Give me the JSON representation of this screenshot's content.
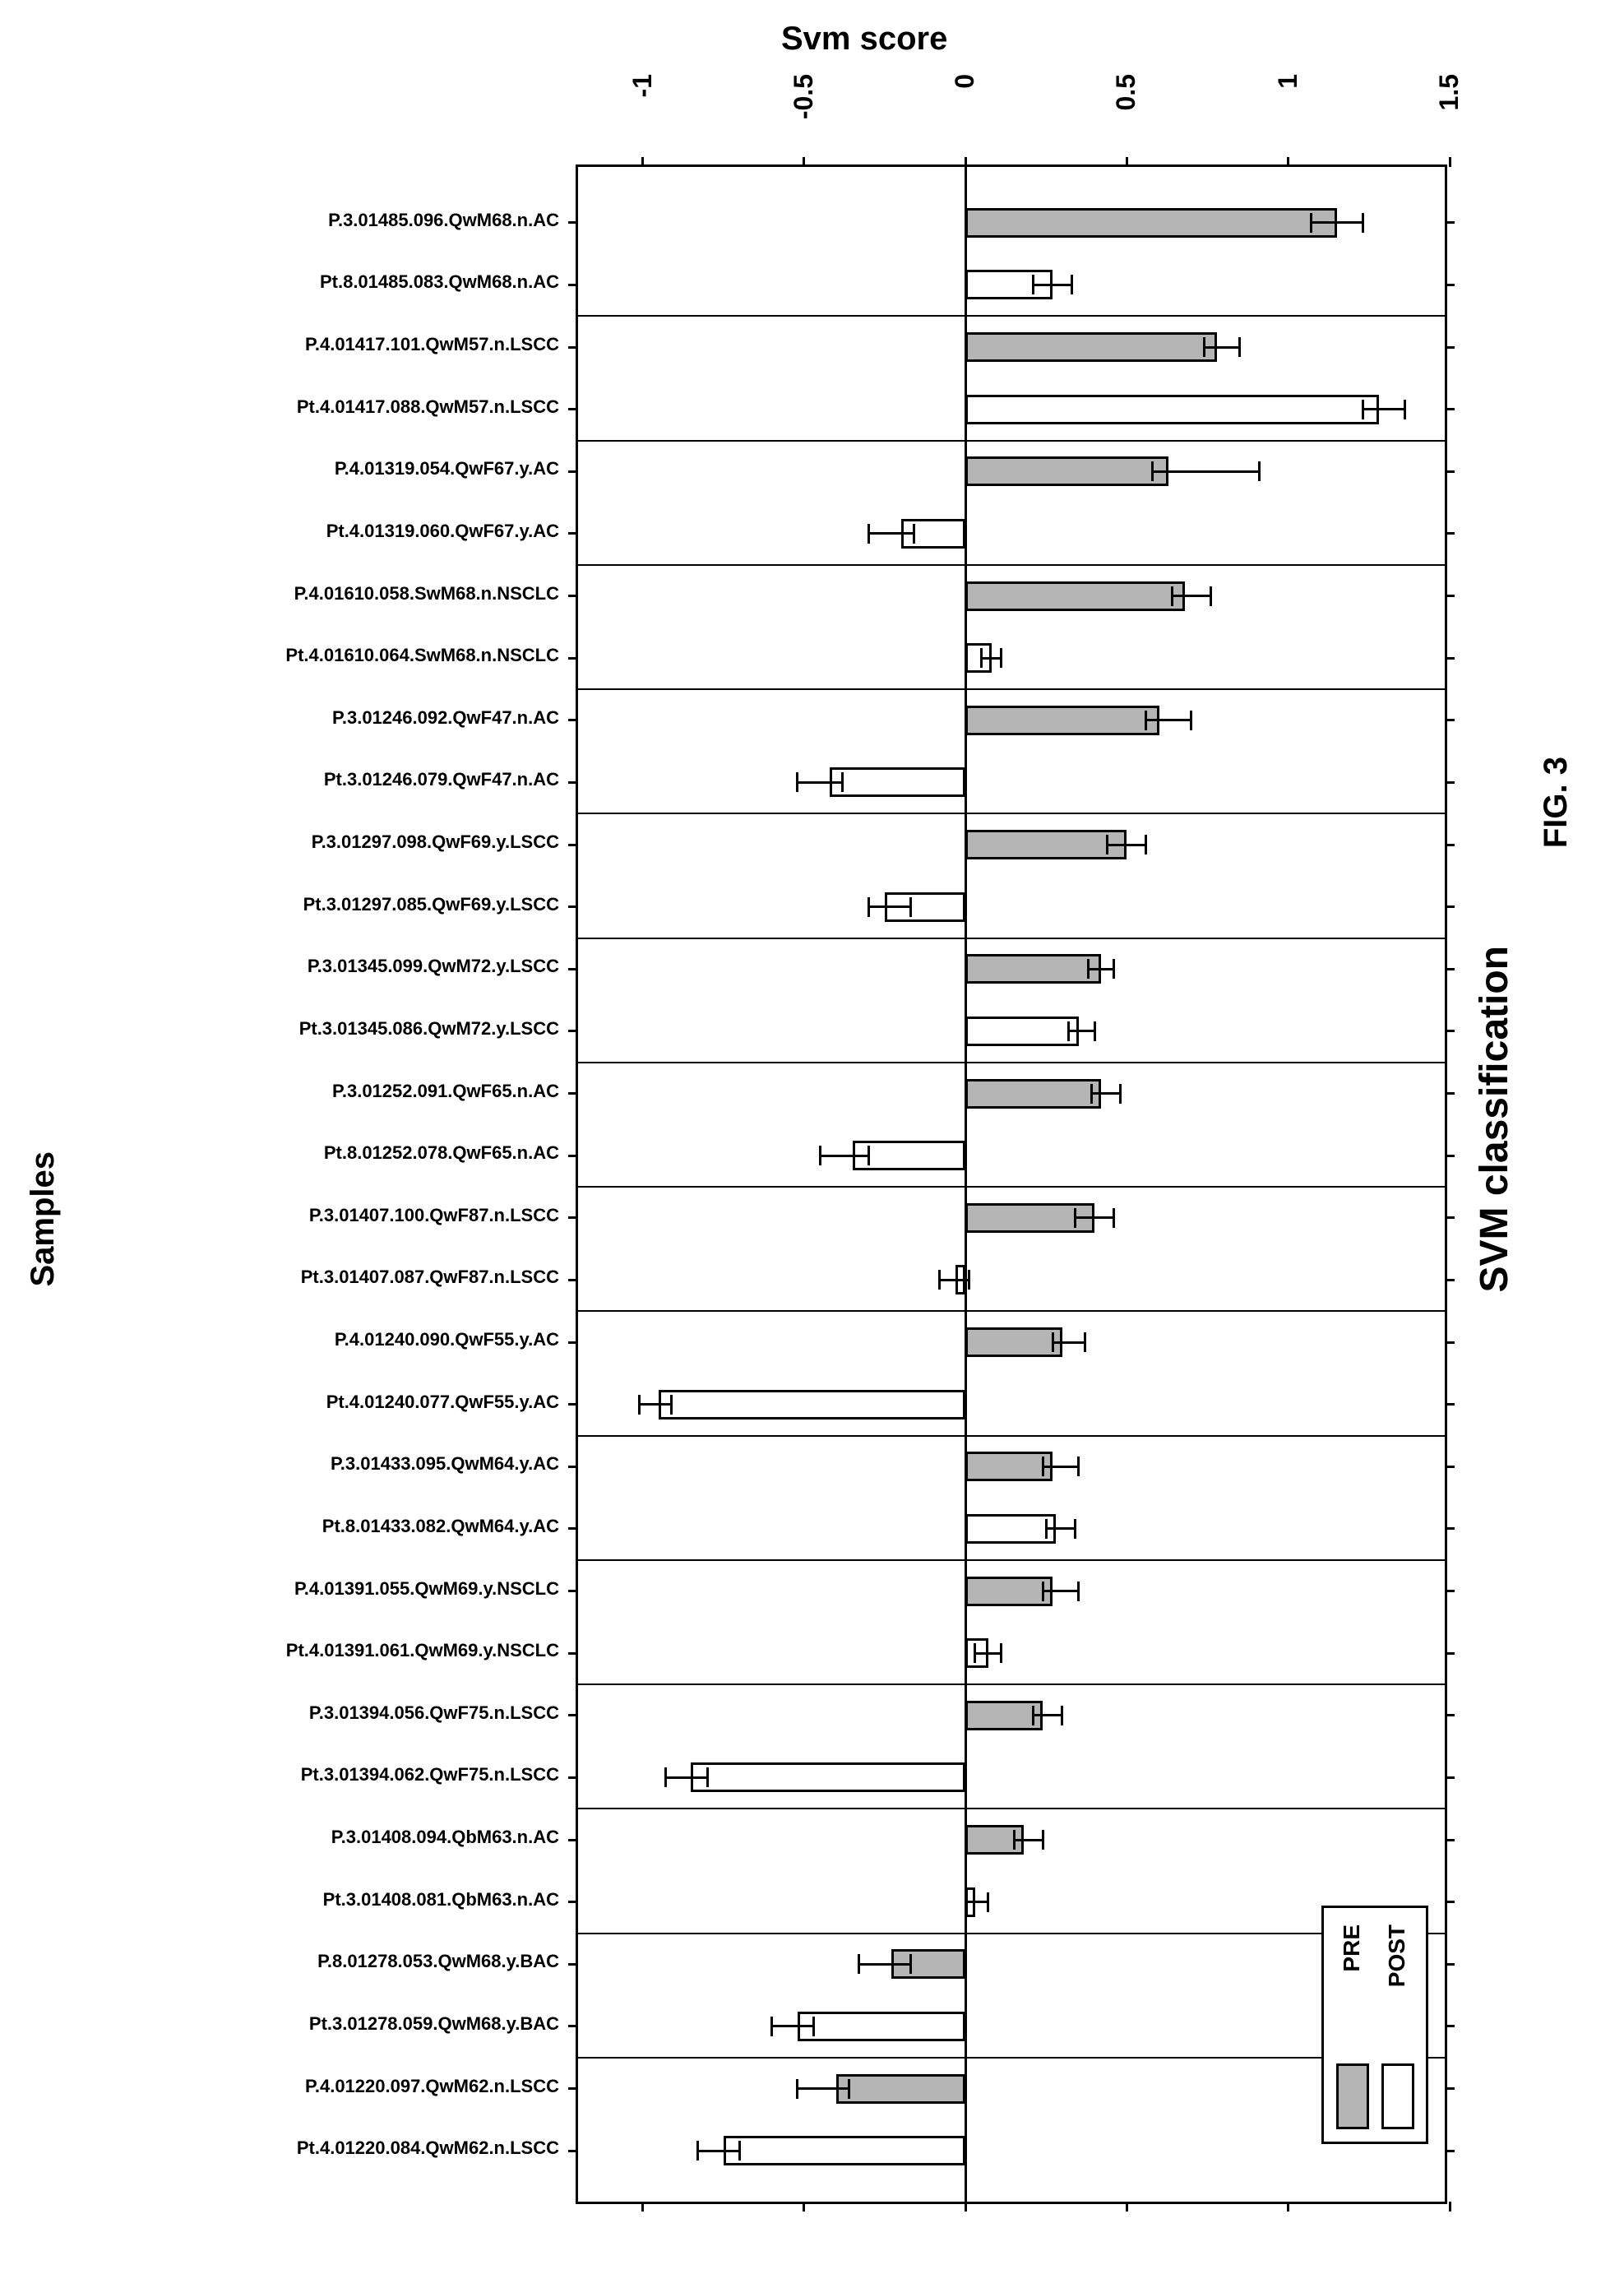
{
  "figure_label": "FIG. 3",
  "chart": {
    "type": "bar",
    "orientation": "horizontal",
    "title": "SVM classification",
    "x_axis_title": "Svm score",
    "y_axis_title": "Samples",
    "xlim": [
      -1.2,
      1.5
    ],
    "xticks": [
      -1,
      -0.5,
      0,
      0.5,
      1,
      1.5
    ],
    "xtick_labels": [
      "-1",
      "-0.5",
      "0",
      "0.5",
      "1",
      "1.5"
    ],
    "bar_border_color": "#000000",
    "axis_color": "#000000",
    "background_color": "#ffffff",
    "font": {
      "label_pt": 22,
      "axis_title_pt": 40,
      "tick_pt": 32,
      "title_pt": 48
    },
    "series_colors": {
      "PRE": "#b5b5b5",
      "POST": "#ffffff"
    },
    "legend": {
      "items": [
        "PRE",
        "POST"
      ]
    },
    "groups": [
      {
        "rows": [
          {
            "label": "P.3.01485.096.QwM68.n.AC",
            "series": "PRE",
            "value": 1.15,
            "err_lo": 0.08,
            "err_hi": 0.08
          },
          {
            "label": "Pt.8.01485.083.QwM68.n.AC",
            "series": "POST",
            "value": 0.27,
            "err_lo": 0.06,
            "err_hi": 0.06
          }
        ]
      },
      {
        "rows": [
          {
            "label": "P.4.01417.101.QwM57.n.LSCC",
            "series": "PRE",
            "value": 0.78,
            "err_lo": 0.04,
            "err_hi": 0.07
          },
          {
            "label": "Pt.4.01417.088.QwM57.n.LSCC",
            "series": "POST",
            "value": 1.28,
            "err_lo": 0.05,
            "err_hi": 0.08
          }
        ]
      },
      {
        "rows": [
          {
            "label": "P.4.01319.054.QwF67.y.AC",
            "series": "PRE",
            "value": 0.63,
            "err_lo": 0.05,
            "err_hi": 0.28
          },
          {
            "label": "Pt.4.01319.060.QwF67.y.AC",
            "series": "POST",
            "value": -0.2,
            "err_lo": 0.1,
            "err_hi": 0.04
          }
        ]
      },
      {
        "rows": [
          {
            "label": "P.4.01610.058.SwM68.n.NSCLC",
            "series": "PRE",
            "value": 0.68,
            "err_lo": 0.04,
            "err_hi": 0.08
          },
          {
            "label": "Pt.4.01610.064.SwM68.n.NSCLC",
            "series": "POST",
            "value": 0.08,
            "err_lo": 0.03,
            "err_hi": 0.03
          }
        ]
      },
      {
        "rows": [
          {
            "label": "P.3.01246.092.QwF47.n.AC",
            "series": "PRE",
            "value": 0.6,
            "err_lo": 0.04,
            "err_hi": 0.1
          },
          {
            "label": "Pt.3.01246.079.QwF47.n.AC",
            "series": "POST",
            "value": -0.42,
            "err_lo": 0.1,
            "err_hi": 0.04
          }
        ]
      },
      {
        "rows": [
          {
            "label": "P.3.01297.098.QwF69.y.LSCC",
            "series": "PRE",
            "value": 0.5,
            "err_lo": 0.06,
            "err_hi": 0.06
          },
          {
            "label": "Pt.3.01297.085.QwF69.y.LSCC",
            "series": "POST",
            "value": -0.25,
            "err_lo": 0.05,
            "err_hi": 0.08
          }
        ]
      },
      {
        "rows": [
          {
            "label": "P.3.01345.099.QwM72.y.LSCC",
            "series": "PRE",
            "value": 0.42,
            "err_lo": 0.04,
            "err_hi": 0.04
          },
          {
            "label": "Pt.3.01345.086.QwM72.y.LSCC",
            "series": "POST",
            "value": 0.35,
            "err_lo": 0.03,
            "err_hi": 0.05
          }
        ]
      },
      {
        "rows": [
          {
            "label": "P.3.01252.091.QwF65.n.AC",
            "series": "PRE",
            "value": 0.42,
            "err_lo": 0.03,
            "err_hi": 0.06
          },
          {
            "label": "Pt.8.01252.078.QwF65.n.AC",
            "series": "POST",
            "value": -0.35,
            "err_lo": 0.1,
            "err_hi": 0.05
          }
        ]
      },
      {
        "rows": [
          {
            "label": "P.3.01407.100.QwF87.n.LSCC",
            "series": "PRE",
            "value": 0.4,
            "err_lo": 0.06,
            "err_hi": 0.06
          },
          {
            "label": "Pt.3.01407.087.QwF87.n.LSCC",
            "series": "POST",
            "value": -0.03,
            "err_lo": 0.05,
            "err_hi": 0.04
          }
        ]
      },
      {
        "rows": [
          {
            "label": "P.4.01240.090.QwF55.y.AC",
            "series": "PRE",
            "value": 0.3,
            "err_lo": 0.03,
            "err_hi": 0.07
          },
          {
            "label": "Pt.4.01240.077.QwF55.y.AC",
            "series": "POST",
            "value": -0.95,
            "err_lo": 0.06,
            "err_hi": 0.04
          }
        ]
      },
      {
        "rows": [
          {
            "label": "P.3.01433.095.QwM64.y.AC",
            "series": "PRE",
            "value": 0.27,
            "err_lo": 0.03,
            "err_hi": 0.08
          },
          {
            "label": "Pt.8.01433.082.QwM64.y.AC",
            "series": "POST",
            "value": 0.28,
            "err_lo": 0.03,
            "err_hi": 0.06
          }
        ]
      },
      {
        "rows": [
          {
            "label": "P.4.01391.055.QwM69.y.NSCLC",
            "series": "PRE",
            "value": 0.27,
            "err_lo": 0.03,
            "err_hi": 0.08
          },
          {
            "label": "Pt.4.01391.061.QwM69.y.NSCLC",
            "series": "POST",
            "value": 0.07,
            "err_lo": 0.04,
            "err_hi": 0.04
          }
        ]
      },
      {
        "rows": [
          {
            "label": "P.3.01394.056.QwF75.n.LSCC",
            "series": "PRE",
            "value": 0.24,
            "err_lo": 0.03,
            "err_hi": 0.06
          },
          {
            "label": "Pt.3.01394.062.QwF75.n.LSCC",
            "series": "POST",
            "value": -0.85,
            "err_lo": 0.08,
            "err_hi": 0.05
          }
        ]
      },
      {
        "rows": [
          {
            "label": "P.3.01408.094.QbM63.n.AC",
            "series": "PRE",
            "value": 0.18,
            "err_lo": 0.03,
            "err_hi": 0.06
          },
          {
            "label": "Pt.3.01408.081.QbM63.n.AC",
            "series": "POST",
            "value": 0.03,
            "err_lo": 0.03,
            "err_hi": 0.04
          }
        ]
      },
      {
        "rows": [
          {
            "label": "P.8.01278.053.QwM68.y.BAC",
            "series": "PRE",
            "value": -0.23,
            "err_lo": 0.1,
            "err_hi": 0.06
          },
          {
            "label": "Pt.3.01278.059.QwM68.y.BAC",
            "series": "POST",
            "value": -0.52,
            "err_lo": 0.08,
            "err_hi": 0.05
          }
        ]
      },
      {
        "rows": [
          {
            "label": "P.4.01220.097.QwM62.n.LSCC",
            "series": "PRE",
            "value": -0.4,
            "err_lo": 0.12,
            "err_hi": 0.04
          },
          {
            "label": "Pt.4.01220.084.QwM62.n.LSCC",
            "series": "POST",
            "value": -0.75,
            "err_lo": 0.08,
            "err_hi": 0.05
          }
        ]
      }
    ]
  }
}
